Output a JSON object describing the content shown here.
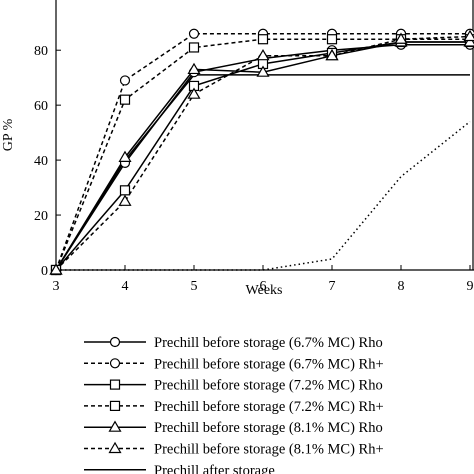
{
  "chart_data": {
    "type": "line",
    "xlabel": "Weeks",
    "ylabel": "GP %",
    "xlim": [
      3,
      9
    ],
    "ylim": [
      0,
      95
    ],
    "x_ticks": [
      3,
      4,
      5,
      6,
      7,
      8,
      9
    ],
    "x_tick_labels": [
      "3",
      "4",
      "5",
      "6",
      "7",
      "8",
      "9"
    ],
    "y_ticks": [
      0,
      20,
      40,
      60,
      80
    ],
    "y_tick_labels": [
      "0",
      "20",
      "40",
      "60",
      "80"
    ],
    "grid": false,
    "legend_position": "bottom",
    "series": [
      {
        "name": "Prechill before storage (6.7% MC) Rho",
        "line": "solid",
        "marker": "circle",
        "x": [
          3,
          4,
          5,
          6,
          7,
          8,
          9
        ],
        "y": [
          0,
          39,
          72,
          77,
          80,
          82,
          82
        ]
      },
      {
        "name": "Prechill before storage (6.7% MC) Rh+",
        "line": "dashed",
        "marker": "circle",
        "x": [
          3,
          4,
          5,
          6,
          7,
          8,
          9
        ],
        "y": [
          0,
          69,
          86,
          86,
          86,
          86,
          86
        ]
      },
      {
        "name": "Prechill before storage (7.2% MC) Rho",
        "line": "solid",
        "marker": "square",
        "x": [
          3,
          4,
          5,
          6,
          7,
          8,
          9
        ],
        "y": [
          0,
          29,
          67,
          75,
          79,
          83,
          83
        ]
      },
      {
        "name": "Prechill before storage (7.2% MC) Rh+",
        "line": "dashed",
        "marker": "square",
        "x": [
          3,
          4,
          5,
          6,
          7,
          8,
          9
        ],
        "y": [
          0,
          62,
          81,
          84,
          84,
          84,
          84
        ]
      },
      {
        "name": "Prechill before storage (8.1% MC) Rho",
        "line": "solid",
        "marker": "triangle",
        "x": [
          3,
          4,
          5,
          6,
          7,
          8,
          9
        ],
        "y": [
          0,
          41,
          73,
          72,
          78,
          83,
          83
        ]
      },
      {
        "name": "Prechill before storage (8.1% MC) Rh+",
        "line": "dashed",
        "marker": "triangle",
        "x": [
          3,
          4,
          5,
          6,
          7,
          8,
          9
        ],
        "y": [
          0,
          25,
          64,
          78,
          78,
          84,
          85
        ]
      },
      {
        "name": "Prechill after storage",
        "line": "solid",
        "marker": "none",
        "x": [
          3,
          4,
          5,
          6,
          7,
          8,
          9
        ],
        "y": [
          0,
          40,
          71,
          71,
          71,
          71,
          71
        ]
      },
      {
        "name": "",
        "line": "dotted",
        "marker": "none",
        "x": [
          3,
          4,
          5,
          6,
          7,
          8,
          9
        ],
        "y": [
          0,
          0,
          0,
          0,
          4,
          34,
          54
        ]
      }
    ]
  }
}
